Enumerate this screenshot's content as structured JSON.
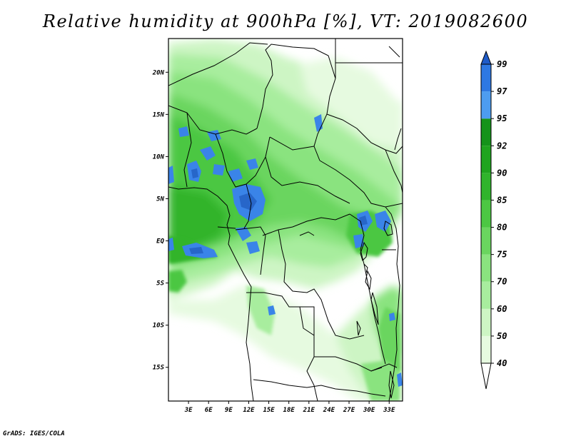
{
  "title": "Relative humidity at 900hPa [%], VT: 2019082600",
  "credit": "GrADS: IGES/COLA",
  "map": {
    "projection": "lat-lon",
    "lon_range": [
      0,
      35
    ],
    "lat_range": [
      -19,
      24
    ],
    "lat_ticks": [
      {
        "value": 20,
        "label": "20N"
      },
      {
        "value": 15,
        "label": "15N"
      },
      {
        "value": 10,
        "label": "10N"
      },
      {
        "value": 5,
        "label": "5N"
      },
      {
        "value": 0,
        "label": "EQ"
      },
      {
        "value": -5,
        "label": "5S"
      },
      {
        "value": -10,
        "label": "10S"
      },
      {
        "value": -15,
        "label": "15S"
      }
    ],
    "lon_ticks": [
      {
        "value": 3,
        "label": "3E"
      },
      {
        "value": 6,
        "label": "6E"
      },
      {
        "value": 9,
        "label": "9E"
      },
      {
        "value": 12,
        "label": "12E"
      },
      {
        "value": 15,
        "label": "15E"
      },
      {
        "value": 18,
        "label": "18E"
      },
      {
        "value": 21,
        "label": "21E"
      },
      {
        "value": 24,
        "label": "24E"
      },
      {
        "value": 27,
        "label": "27E"
      },
      {
        "value": 30,
        "label": "30E"
      },
      {
        "value": 33,
        "label": "33E"
      }
    ]
  },
  "colorbar": {
    "levels": [
      "40",
      "50",
      "60",
      "70",
      "75",
      "80",
      "85",
      "90",
      "92",
      "95",
      "97",
      "99"
    ],
    "colors": [
      "#ffffff",
      "#e6fae0",
      "#cdf5c4",
      "#a8ed9e",
      "#8ae37f",
      "#6ad55f",
      "#4cc743",
      "#30b42c",
      "#1fa41e",
      "#15931a",
      "#4d9cf0",
      "#2e78e2",
      "#1f5bc8"
    ]
  },
  "colors": {
    "ocean_blue": "#3a84e8",
    "deep_blue": "#2766c9",
    "borders": "#000000"
  }
}
